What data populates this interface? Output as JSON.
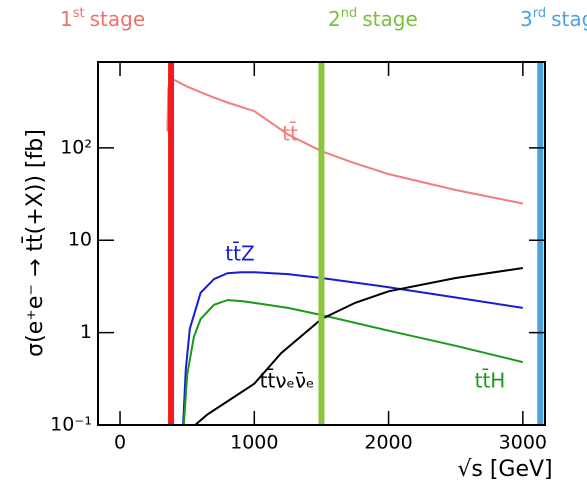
{
  "chart_data": {
    "type": "line",
    "x_label": "√s [GeV]",
    "y_label": "σ(e⁺e⁻ → tt̄(+X)) [fb]",
    "xlim": [
      -164,
      3165
    ],
    "ylim": [
      0.1,
      850
    ],
    "log_y": true,
    "xticks": [
      0,
      1000,
      2000,
      3000
    ],
    "yticks": [
      {
        "value": 0.1,
        "label": "10⁻¹"
      },
      1,
      10,
      {
        "value": 100,
        "label": "10²"
      }
    ],
    "stages": [
      {
        "number": "1",
        "suffix": "st",
        "word": "stage",
        "x": 380,
        "color": "#f0706a",
        "line_color": "#ee1c1c"
      },
      {
        "number": "2",
        "suffix": "nd",
        "word": "stage",
        "x": 1500,
        "color": "#7cbf3c",
        "line_color": "#8cc63f"
      },
      {
        "number": "3",
        "suffix": "rd",
        "word": "stage",
        "x": 3130,
        "color": "#4aa3df",
        "line_color": "#4aa3df"
      }
    ],
    "series": [
      {
        "name": "tt̄",
        "color": "#f47c7c",
        "x": [
          352,
          360,
          380,
          420,
          500,
          600,
          700,
          800,
          1000,
          1250,
          1500,
          1750,
          2000,
          2500,
          3000
        ],
        "values": [
          150,
          450,
          560,
          530,
          460,
          400,
          350,
          310,
          250,
          140,
          92,
          68,
          52,
          35,
          25
        ]
      },
      {
        "name": "tt̄Z",
        "color": "#1a1adb",
        "x": [
          470,
          490,
          520,
          600,
          700,
          800,
          900,
          1000,
          1250,
          1500,
          2000,
          2500,
          3000
        ],
        "values": [
          0.1,
          0.4,
          1.1,
          2.7,
          3.8,
          4.4,
          4.5,
          4.5,
          4.3,
          3.9,
          3.1,
          2.4,
          1.85
        ]
      },
      {
        "name": "tt̄H",
        "color": "#1a9a1a",
        "x": [
          475,
          500,
          550,
          600,
          700,
          800,
          900,
          1000,
          1250,
          1500,
          2000,
          2500,
          3000
        ],
        "values": [
          0.1,
          0.35,
          0.9,
          1.4,
          2.0,
          2.25,
          2.2,
          2.1,
          1.85,
          1.55,
          1.05,
          0.72,
          0.48
        ]
      },
      {
        "name": "tt̄νₑν̄ₑ",
        "color": "#000000",
        "x": [
          560,
          650,
          800,
          1000,
          1200,
          1500,
          1750,
          2000,
          2500,
          3000
        ],
        "values": [
          0.1,
          0.13,
          0.18,
          0.28,
          0.6,
          1.4,
          2.1,
          2.8,
          3.9,
          5.0
        ]
      }
    ]
  }
}
